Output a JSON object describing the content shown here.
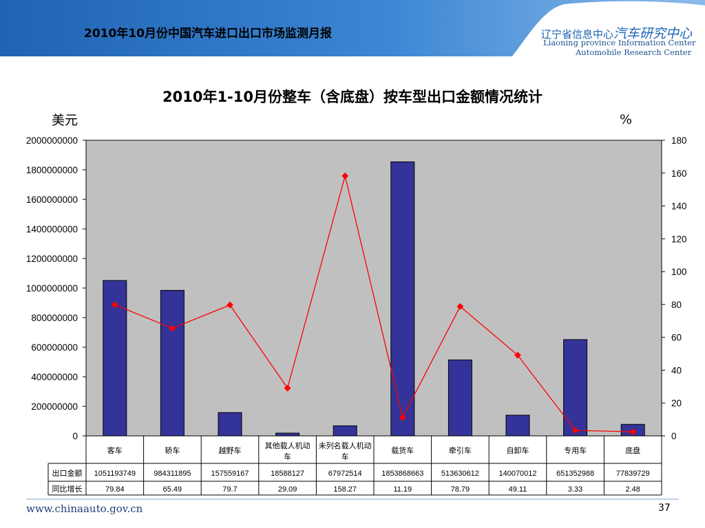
{
  "header": {
    "title": "2010年10月份中国汽车进口出口市场监测月报",
    "logo_cn_prefix": "辽宁省信息中心",
    "logo_cn_main": "汽车研究中心",
    "logo_en_line1": "Liaoning province Information Center",
    "logo_en_line2": "Automobile Research Center"
  },
  "footer": {
    "url": "www.chinaauto.gov.cn",
    "page": "37"
  },
  "colors": {
    "bar": "#333399",
    "line": "#ff0000",
    "header_blue": "#2e74c4",
    "plot_bg": "#c0c0c0"
  },
  "chart_data": {
    "type": "bar",
    "title": "2010年1-10月份整车（含底盘）按车型出口金额情况统计",
    "ylabel_left": "美元",
    "ylabel_right": "%",
    "categories": [
      "客车",
      "轿车",
      "越野车",
      "其他载人机动车",
      "未列名载人机动车",
      "载货车",
      "牵引车",
      "自卸车",
      "专用车",
      "底盘"
    ],
    "ylim_left": [
      0,
      2000000000
    ],
    "yticks_left": [
      0,
      200000000,
      400000000,
      600000000,
      800000000,
      1000000000,
      1200000000,
      1400000000,
      1600000000,
      1800000000,
      2000000000
    ],
    "ylim_right": [
      0,
      180
    ],
    "yticks_right": [
      0,
      20,
      40,
      60,
      80,
      100,
      120,
      140,
      160,
      180
    ],
    "series": [
      {
        "name": "出口金额",
        "type": "bar",
        "axis": "left",
        "values": [
          1051193749,
          984311895,
          157559167,
          18588127,
          67972514,
          1853868663,
          513630612,
          140070012,
          651352988,
          77839729
        ]
      },
      {
        "name": "同比增长",
        "type": "line",
        "axis": "right",
        "values": [
          79.84,
          65.49,
          79.7,
          29.09,
          158.27,
          11.19,
          78.79,
          49.11,
          3.33,
          2.48
        ]
      }
    ],
    "table_rows": [
      {
        "label": "出口金额",
        "cells": [
          "1051193749",
          "984311895",
          "157559167",
          "18588127",
          "67972514",
          "1853868663",
          "513630612",
          "140070012",
          "651352988",
          "77839729"
        ]
      },
      {
        "label": "同比增长",
        "cells": [
          "79.84",
          "65.49",
          "79.7",
          "29.09",
          "158.27",
          "11.19",
          "78.79",
          "49.11",
          "3.33",
          "2.48"
        ]
      }
    ]
  }
}
